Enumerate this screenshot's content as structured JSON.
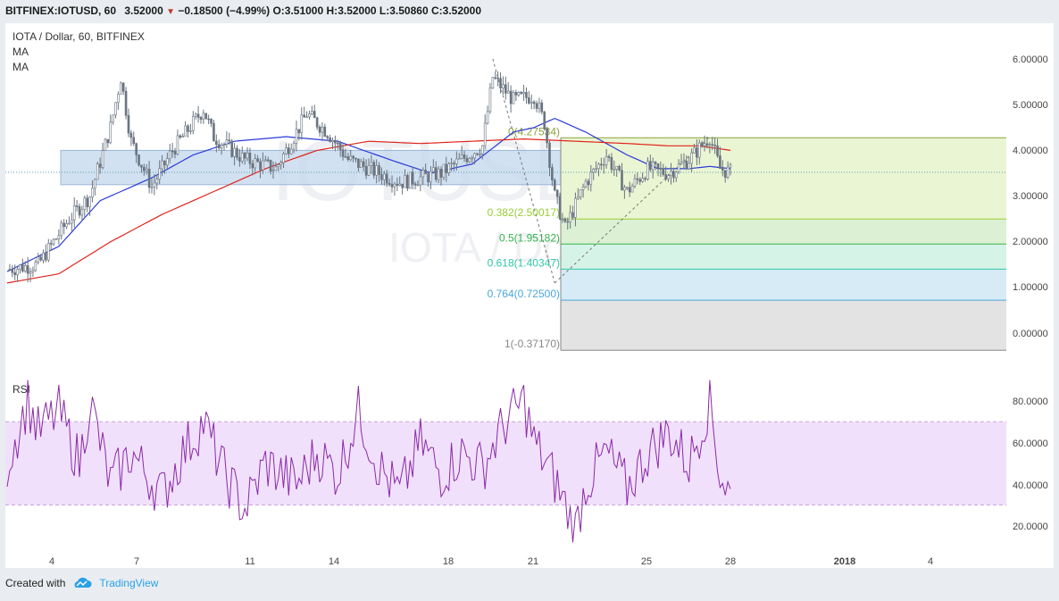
{
  "header": {
    "symbol": "BITFINEX:IOTUSD, 60",
    "last": "3.52000",
    "change_arrow": "▼",
    "change": "−0.18500 (−4.99%)",
    "o_label": "O:",
    "o_value": "3.51000",
    "h_label": "H:",
    "h_value": "3.52000",
    "l_label": "L:",
    "l_value": "3.50860",
    "c_label": "C:",
    "c_value": "3.52000"
  },
  "legend": {
    "title": "IOTA / Dollar, 60, BITFINEX",
    "ma1": "MA",
    "ma2": "MA",
    "rsi": "RSI"
  },
  "watermark": {
    "symbol": "IOTUSD, 60",
    "name": "IOTA / Dollar"
  },
  "footer": {
    "created_with": "Created with",
    "brand": "TradingView",
    "brand_icon": "tradingview-cloud-icon"
  },
  "colors": {
    "up": "#6a7480",
    "down": "#6a7480",
    "ma_fast": "#2b3bd9",
    "ma_slow": "#e0241b",
    "support_zone": "#c6d9ee",
    "rsi_line": "#8a2aa8",
    "rsi_band": "#f1e0fb",
    "fib_0382": "#9acd32",
    "fib_05": "#35b14a",
    "fib_0618": "#2fc7a8",
    "fib_0764": "#4aa8d8",
    "fib_1": "#888888"
  },
  "chart_data": [
    {
      "type": "candlestick",
      "title": "IOTA / Dollar, 60, BITFINEX",
      "x_ticks": [
        "4",
        "7",
        "11",
        "14",
        "18",
        "21",
        "25",
        "28",
        "2018",
        "4"
      ],
      "y_ticks": [
        "6.00000",
        "5.00000",
        "4.00000",
        "3.00000",
        "2.00000",
        "1.00000",
        "0.00000"
      ],
      "ylim": [
        -0.4,
        6.2
      ],
      "grid": false,
      "last_price": 3.52,
      "ohlc_last": {
        "open": 3.51,
        "high": 3.52,
        "low": 3.5086,
        "close": 3.52
      },
      "close_path_keypoints": [
        [
          0,
          1.4
        ],
        [
          3,
          1.5
        ],
        [
          6,
          2.5
        ],
        [
          8,
          3.0
        ],
        [
          10,
          4.5
        ],
        [
          11,
          5.6
        ],
        [
          12,
          4.2
        ],
        [
          14,
          3.2
        ],
        [
          16,
          4.0
        ],
        [
          19,
          4.9
        ],
        [
          20,
          4.3
        ],
        [
          23,
          3.8
        ],
        [
          26,
          3.6
        ],
        [
          29,
          4.8
        ],
        [
          31,
          4.4
        ],
        [
          33,
          3.8
        ],
        [
          35,
          3.6
        ],
        [
          38,
          3.3
        ],
        [
          42,
          3.5
        ],
        [
          44,
          3.8
        ],
        [
          46,
          4.1
        ],
        [
          47,
          5.6
        ],
        [
          49,
          5.1
        ],
        [
          51,
          5.2
        ],
        [
          52,
          4.6
        ],
        [
          53,
          3.0
        ],
        [
          54,
          2.3
        ],
        [
          56,
          3.3
        ],
        [
          58,
          3.9
        ],
        [
          60,
          3.1
        ],
        [
          62,
          3.6
        ],
        [
          64,
          3.5
        ],
        [
          66,
          3.8
        ],
        [
          68,
          4.3
        ],
        [
          69,
          3.6
        ],
        [
          70,
          3.52
        ]
      ],
      "moving_averages": [
        {
          "name": "MA",
          "keypoints": [
            [
              0,
              1.35
            ],
            [
              5,
              1.9
            ],
            [
              9,
              2.9
            ],
            [
              14,
              3.4
            ],
            [
              18,
              3.9
            ],
            [
              22,
              4.2
            ],
            [
              27,
              4.3
            ],
            [
              32,
              4.2
            ],
            [
              37,
              3.8
            ],
            [
              41,
              3.5
            ],
            [
              45,
              3.7
            ],
            [
              49,
              4.4
            ],
            [
              51,
              4.5
            ],
            [
              53,
              4.7
            ],
            [
              56,
              4.4
            ],
            [
              60,
              3.9
            ],
            [
              63,
              3.6
            ],
            [
              66,
              3.6
            ],
            [
              68,
              3.65
            ],
            [
              70,
              3.6
            ]
          ]
        },
        {
          "name": "MA",
          "keypoints": [
            [
              0,
              1.1
            ],
            [
              5,
              1.3
            ],
            [
              10,
              2.0
            ],
            [
              15,
              2.6
            ],
            [
              20,
              3.1
            ],
            [
              25,
              3.6
            ],
            [
              30,
              4.0
            ],
            [
              35,
              4.2
            ],
            [
              40,
              4.15
            ],
            [
              45,
              4.2
            ],
            [
              50,
              4.25
            ],
            [
              55,
              4.2
            ],
            [
              60,
              4.15
            ],
            [
              64,
              4.1
            ],
            [
              67,
              4.1
            ],
            [
              70,
              4.0
            ]
          ]
        }
      ],
      "zones": [
        {
          "name": "support-resistance",
          "from": 3.25,
          "to": 4.0
        }
      ],
      "fibonacci": {
        "levels": [
          {
            "ratio": "0",
            "price": "4.27534",
            "label": "0(4.27534)"
          },
          {
            "ratio": "0.382",
            "price": "2.50017",
            "label": "0.382(2.50017)"
          },
          {
            "ratio": "0.5",
            "price": "1.95182",
            "label": "0.5(1.95182)"
          },
          {
            "ratio": "0.618",
            "price": "1.40347",
            "label": "0.618(1.40347)"
          },
          {
            "ratio": "0.764",
            "price": "0.72500",
            "label": "0.764(0.72500)"
          },
          {
            "ratio": "1",
            "price": "-0.37170",
            "label": "1(-0.37170)"
          }
        ]
      }
    },
    {
      "type": "line",
      "title": "RSI",
      "y_ticks": [
        "80.0000",
        "60.0000",
        "40.0000",
        "20.0000"
      ],
      "ylim": [
        10,
        92
      ],
      "band": [
        30,
        70
      ],
      "series_keypoints": [
        [
          0,
          50
        ],
        [
          2,
          80
        ],
        [
          3,
          65
        ],
        [
          5,
          75
        ],
        [
          7,
          50
        ],
        [
          8,
          80
        ],
        [
          10,
          40
        ],
        [
          12,
          55
        ],
        [
          15,
          35
        ],
        [
          17,
          55
        ],
        [
          19,
          70
        ],
        [
          21,
          45
        ],
        [
          23,
          28
        ],
        [
          25,
          50
        ],
        [
          28,
          40
        ],
        [
          30,
          55
        ],
        [
          32,
          45
        ],
        [
          34,
          75
        ],
        [
          36,
          48
        ],
        [
          38,
          35
        ],
        [
          40,
          60
        ],
        [
          42,
          45
        ],
        [
          44,
          55
        ],
        [
          46,
          48
        ],
        [
          48,
          68
        ],
        [
          50,
          80
        ],
        [
          51,
          60
        ],
        [
          53,
          42
        ],
        [
          55,
          18
        ],
        [
          56,
          40
        ],
        [
          58,
          55
        ],
        [
          60,
          38
        ],
        [
          62,
          55
        ],
        [
          64,
          65
        ],
        [
          66,
          50
        ],
        [
          68,
          80
        ],
        [
          69,
          45
        ],
        [
          70,
          35
        ]
      ]
    }
  ]
}
